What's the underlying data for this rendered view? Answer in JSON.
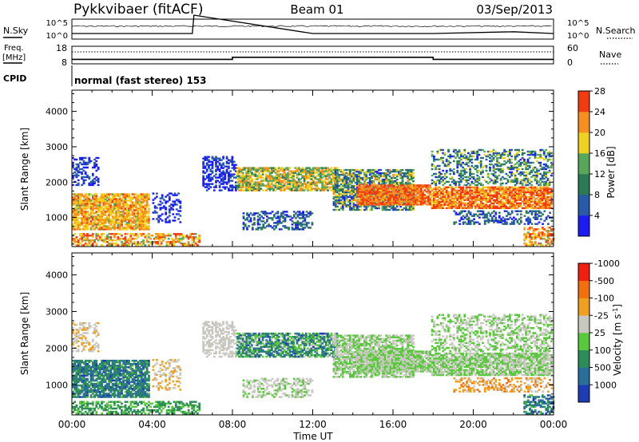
{
  "header": {
    "station": "Pykkvibaer (fitACF)",
    "beam": "Beam 01",
    "date": "03/Sep/2013"
  },
  "panels": {
    "nsky_label": "N.Sky",
    "nsky_ticks": [
      "10^5",
      "10^0"
    ],
    "nsearch_label": "N.Search",
    "freq_label_1": "Freq.",
    "freq_label_2": "[MHz]",
    "freq_ticks": [
      "18",
      "8"
    ],
    "nave_label": "Nave",
    "nave_ticks": [
      "60",
      "0"
    ],
    "cpid_label": "CPID",
    "cpid_text": "normal (fast stereo) 153"
  },
  "chart_data": [
    {
      "type": "line",
      "title": "Pykkvibaer (fitACF)",
      "series": [
        {
          "name": "N.Sky",
          "x": [
            "00:00",
            "06:00",
            "06:05",
            "12:00",
            "18:00",
            "22:00",
            "24:00"
          ],
          "y": [
            1,
            1,
            100000,
            1,
            1,
            3,
            1
          ]
        },
        {
          "name": "N.Search",
          "x": [
            "00:00",
            "24:00"
          ],
          "y": [
            1,
            1
          ]
        }
      ],
      "ylabel": "N.Sky",
      "ylim": [
        1,
        100000
      ],
      "scale": "log"
    },
    {
      "type": "line",
      "series": [
        {
          "name": "Freq.",
          "x": [
            "00:00",
            "08:00",
            "08:00",
            "18:00",
            "18:00",
            "24:00"
          ],
          "y": [
            10.3,
            10.3,
            11.6,
            11.6,
            10.3,
            10.3
          ]
        },
        {
          "name": "Nave",
          "x": [
            "00:00",
            "24:00"
          ],
          "y": [
            45,
            45
          ]
        }
      ],
      "ylabel": "Freq. [MHz]",
      "ylim": [
        8,
        18
      ],
      "y2label": "Nave",
      "y2lim": [
        0,
        60
      ]
    },
    {
      "type": "heatmap",
      "quantity": "Power",
      "xlabel": "",
      "ylabel": "Slant Range [km]",
      "xticks": [
        "00:00",
        "04:00",
        "08:00",
        "12:00",
        "16:00",
        "20:00",
        "00:00"
      ],
      "yticks": [
        1000,
        2000,
        3000,
        4000
      ],
      "ylim": [
        180,
        4600
      ],
      "colorbar_label": "Power [dB]",
      "colorbar_ticks": [
        4,
        8,
        12,
        16,
        20,
        24,
        28
      ],
      "colors": [
        "#1c1cf2",
        "#285aa8",
        "#2b7a55",
        "#57a65a",
        "#f0d020",
        "#f59020",
        "#f03c10"
      ]
    },
    {
      "type": "heatmap",
      "quantity": "Velocity",
      "xlabel": "Time UT",
      "ylabel": "Slant Range [km]",
      "xticks": [
        "00:00",
        "04:00",
        "08:00",
        "12:00",
        "16:00",
        "20:00",
        "00:00"
      ],
      "yticks": [
        1000,
        2000,
        3000,
        4000
      ],
      "ylim": [
        180,
        4600
      ],
      "colorbar_label": "Velocity [m s-1]",
      "colorbar_ticks": [
        "1000",
        "500",
        "100",
        "25",
        "-25",
        "-100",
        "-500",
        "-1000"
      ],
      "colors": [
        "#1e3cb4",
        "#2a6e9c",
        "#2e8c5a",
        "#5ac83c",
        "#c8c8c0",
        "#f0a020",
        "#f07010",
        "#f02010"
      ]
    }
  ]
}
